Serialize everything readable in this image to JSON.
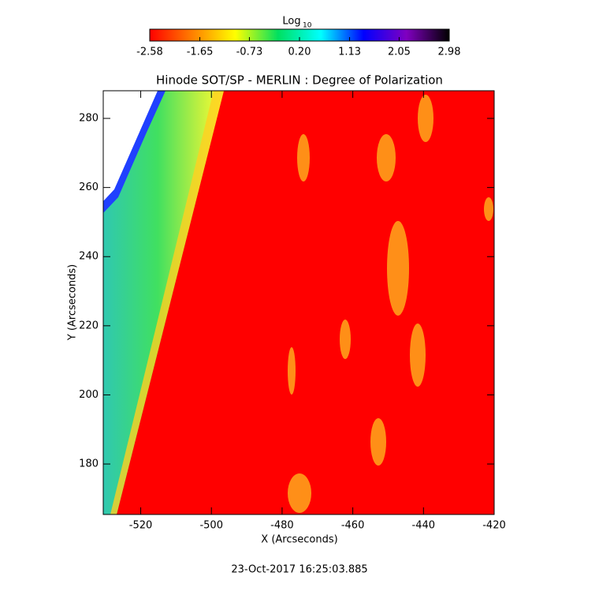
{
  "chart_data": {
    "type": "heatmap",
    "title": "Hinode SOT/SP - MERLIN : Degree of Polarization",
    "xlabel": "X (Arcseconds)",
    "ylabel": "Y (Arcseconds)",
    "xlim": [
      -530.6,
      -420
    ],
    "xticks": [
      -520,
      -500,
      -480,
      -460,
      -440,
      -420
    ],
    "ylim": [
      165.4,
      288
    ],
    "yticks": [
      180,
      200,
      220,
      240,
      260,
      280
    ],
    "colorbar_label": "Log",
    "colorbar_label_sub": "10",
    "colorbar_lim": [
      -2.58,
      2.98
    ],
    "colorbar_ticks": [
      -2.58,
      -1.65,
      -0.73,
      {
        "value": 0.2,
        "label": "0.20"
      },
      1.13,
      2.05,
      2.98
    ],
    "colormap": [
      "#ff0000",
      "#ff8000",
      "#ffff00",
      "#00e060",
      "#00ffff",
      "#0000ff",
      "#8000c0",
      "#000000"
    ],
    "footer": "23-Oct-2017 16:25:03.885"
  }
}
